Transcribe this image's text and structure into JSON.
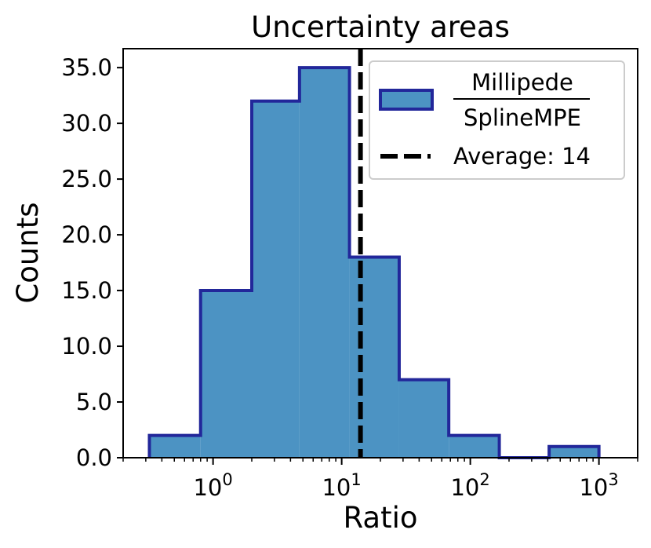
{
  "chart_data": {
    "type": "histogram",
    "title": "Uncertainty areas",
    "xlabel": "Ratio",
    "ylabel": "Counts",
    "x_scale": "log",
    "xlim": [
      0.2,
      2000
    ],
    "ylim": [
      0,
      36.7
    ],
    "bins": [
      {
        "from": 0.32,
        "to": 0.8,
        "count": 2
      },
      {
        "from": 0.8,
        "to": 2.0,
        "count": 15
      },
      {
        "from": 2.0,
        "to": 4.7,
        "count": 32
      },
      {
        "from": 4.7,
        "to": 11.5,
        "count": 35
      },
      {
        "from": 11.5,
        "to": 28,
        "count": 18
      },
      {
        "from": 28,
        "to": 68,
        "count": 7
      },
      {
        "from": 68,
        "to": 168,
        "count": 2
      },
      {
        "from": 168,
        "to": 410,
        "count": 0
      },
      {
        "from": 410,
        "to": 1000,
        "count": 1
      }
    ],
    "average": {
      "value": 14,
      "label": "Average: 14"
    },
    "y_ticks": [
      {
        "value": 0,
        "label": "0.0"
      },
      {
        "value": 5,
        "label": "5.0"
      },
      {
        "value": 10,
        "label": "10.0"
      },
      {
        "value": 15,
        "label": "15.0"
      },
      {
        "value": 20,
        "label": "20.0"
      },
      {
        "value": 25,
        "label": "25.0"
      },
      {
        "value": 30,
        "label": "30.0"
      },
      {
        "value": 35,
        "label": "35.0"
      }
    ],
    "x_ticks": [
      {
        "value": 1,
        "base": "10",
        "exp": "0"
      },
      {
        "value": 10,
        "base": "10",
        "exp": "1"
      },
      {
        "value": 100,
        "base": "10",
        "exp": "2"
      },
      {
        "value": 1000,
        "base": "10",
        "exp": "3"
      }
    ],
    "legend": {
      "position": "top-right",
      "series_numerator": "Millipede",
      "series_denominator": "SplineMPE",
      "average_label": "Average: 14"
    },
    "colors": {
      "fill": "#4c93c3",
      "edge": "#22279a",
      "average_line": "#000000"
    }
  }
}
